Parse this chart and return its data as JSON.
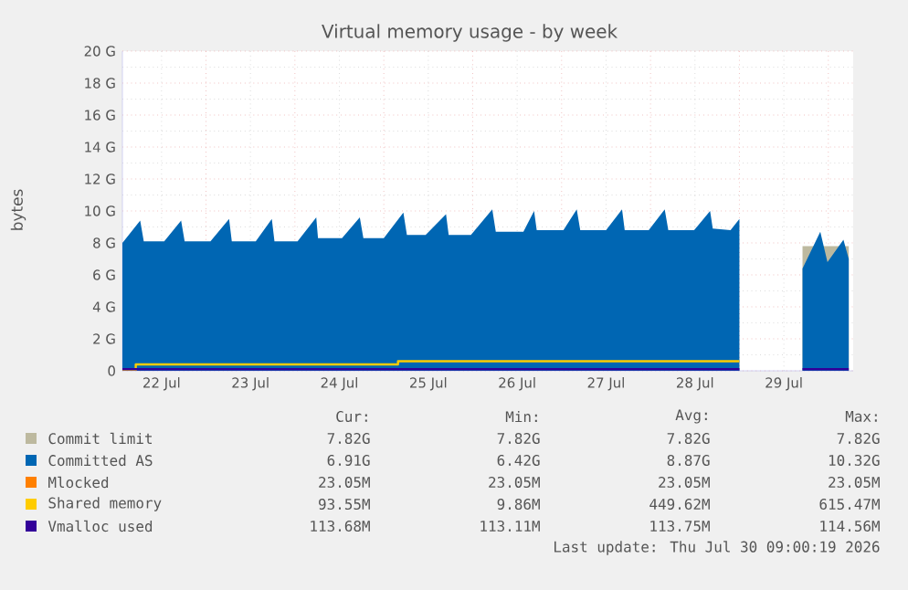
{
  "chart_data": {
    "type": "area",
    "title": "Virtual memory usage - by week",
    "ylabel": "bytes",
    "xlim": [
      "2026-07-22T01:26",
      "2026-07-30T06:43"
    ],
    "ylim": [
      0,
      20
    ],
    "xticks": [
      {
        "value": "2026-07-23",
        "label": null
      },
      {
        "value": "2026-07-24",
        "label": null
      },
      {
        "value": "2026-07-25",
        "label": null
      },
      {
        "value": "2026-07-26",
        "label": null
      },
      {
        "value": "2026-07-27",
        "label": null
      },
      {
        "value": "2026-07-28",
        "label": null
      },
      {
        "value": "2026-07-29",
        "label": null
      },
      {
        "value": "2026-07-30",
        "label": null
      },
      {
        "value": "2026-07-22T12:00",
        "label": "22 Jul"
      },
      {
        "value": "2026-07-23T12:00",
        "label": "23 Jul"
      },
      {
        "value": "2026-07-24T12:00",
        "label": "24 Jul"
      },
      {
        "value": "2026-07-25T12:00",
        "label": "25 Jul"
      },
      {
        "value": "2026-07-26T12:00",
        "label": "26 Jul"
      },
      {
        "value": "2026-07-27T12:00",
        "label": "27 Jul"
      },
      {
        "value": "2026-07-28T12:00",
        "label": "28 Jul"
      },
      {
        "value": "2026-07-29T12:00",
        "label": "29 Jul"
      }
    ],
    "yticks": [
      0,
      {
        "value": 2,
        "label": "2 G"
      },
      {
        "value": 4,
        "label": "4 G"
      },
      {
        "value": 6,
        "label": "6 G"
      },
      {
        "value": 8,
        "label": "8 G"
      },
      {
        "value": 10,
        "label": "10 G"
      },
      {
        "value": 12,
        "label": "12 G"
      },
      {
        "value": 14,
        "label": "14 G"
      },
      {
        "value": 16,
        "label": "16 G"
      },
      {
        "value": 18,
        "label": "18 G"
      },
      {
        "value": 20,
        "label": "20 G"
      }
    ],
    "grid": true,
    "legend": "bottom",
    "series": [
      {
        "name": "Commit limit",
        "color": "#bdb99f",
        "x": [
          "2026-07-29T17:02",
          "2026-07-30T05:31"
        ],
        "values": [
          7.8,
          7.8
        ]
      },
      {
        "name": "Committed AS",
        "color": "#0066b3",
        "x": [
          "2026-07-22T01:26",
          "2026-07-22T06:14",
          "2026-07-22T07:12",
          "2026-07-22T12:43",
          "2026-07-22T17:17",
          "2026-07-22T18:14",
          "2026-07-23T01:12",
          "2026-07-23T06:14",
          "2026-07-23T06:58",
          "2026-07-23T13:26",
          "2026-07-23T17:46",
          "2026-07-23T18:29",
          "2026-07-24T00:43",
          "2026-07-24T05:46",
          "2026-07-24T06:14",
          "2026-07-24T12:43",
          "2026-07-24T17:31",
          "2026-07-24T18:29",
          "2026-07-25T00:00",
          "2026-07-25T05:17",
          "2026-07-25T06:14",
          "2026-07-25T11:17",
          "2026-07-25T16:48",
          "2026-07-25T17:31",
          "2026-07-25T23:31",
          "2026-07-26T05:17",
          "2026-07-26T06:14",
          "2026-07-26T13:41",
          "2026-07-26T16:34",
          "2026-07-26T17:17",
          "2026-07-27T00:29",
          "2026-07-27T04:05",
          "2026-07-27T05:02",
          "2026-07-27T12:00",
          "2026-07-27T16:19",
          "2026-07-27T17:02",
          "2026-07-27T23:31",
          "2026-07-28T03:50",
          "2026-07-28T04:48",
          "2026-07-28T11:46",
          "2026-07-28T16:05",
          "2026-07-28T16:48",
          "2026-07-28T21:36",
          "2026-07-29T00:00",
          "2026-07-29T07:12",
          "2026-07-29T17:02",
          "2026-07-29T21:50",
          "2026-07-29T23:46",
          "2026-07-30T04:05",
          "2026-07-30T05:31"
        ],
        "values": [
          8.0,
          9.4,
          8.1,
          8.1,
          9.4,
          8.1,
          8.1,
          9.5,
          8.1,
          8.1,
          9.5,
          8.1,
          8.1,
          9.6,
          8.3,
          8.3,
          9.6,
          8.3,
          8.3,
          9.9,
          8.5,
          8.5,
          9.8,
          8.5,
          8.5,
          10.1,
          8.7,
          8.7,
          10.0,
          8.8,
          8.8,
          10.1,
          8.8,
          8.8,
          10.1,
          8.8,
          8.8,
          10.1,
          8.8,
          8.8,
          10.0,
          8.9,
          8.8,
          9.5,
          null,
          6.4,
          8.7,
          6.8,
          8.2,
          7.0
        ]
      },
      {
        "name": "Mlocked",
        "color": "#ff8000",
        "type": "line"
      },
      {
        "name": "Shared memory",
        "color": "#ffcc00",
        "type": "line",
        "x": [
          "2026-07-22T01:26",
          "2026-07-22T05:02",
          "2026-07-22T05:02",
          "2026-07-25T03:50",
          "2026-07-25T03:50",
          "2026-07-29T00:00"
        ],
        "values": [
          0.0,
          0.0,
          0.4,
          0.4,
          0.6,
          0.6
        ]
      },
      {
        "name": "Vmalloc used",
        "color": "#330099",
        "type": "line",
        "x": [
          "2026-07-22T01:26",
          "2026-07-29T00:00",
          "2026-07-29T07:12",
          "2026-07-29T17:02",
          "2026-07-30T05:31"
        ],
        "values": [
          0.1,
          0.1,
          null,
          0.1,
          0.1
        ]
      }
    ],
    "annotations": [
      "Cur:",
      "Min:",
      "Avg:",
      "Max:",
      "7.82G",
      "7.82G",
      "7.82G",
      "7.82G",
      "6.91G",
      "6.42G",
      "8.87G",
      "10.32G",
      "23.05M",
      "23.05M",
      "23.05M",
      "23.05M",
      "93.55M",
      "9.86M",
      "449.62M",
      "615.47M",
      "113.68M",
      "113.11M",
      "113.75M",
      "114.56M",
      "Last update: Thu Jul 30 09:00:19 2026"
    ]
  }
}
